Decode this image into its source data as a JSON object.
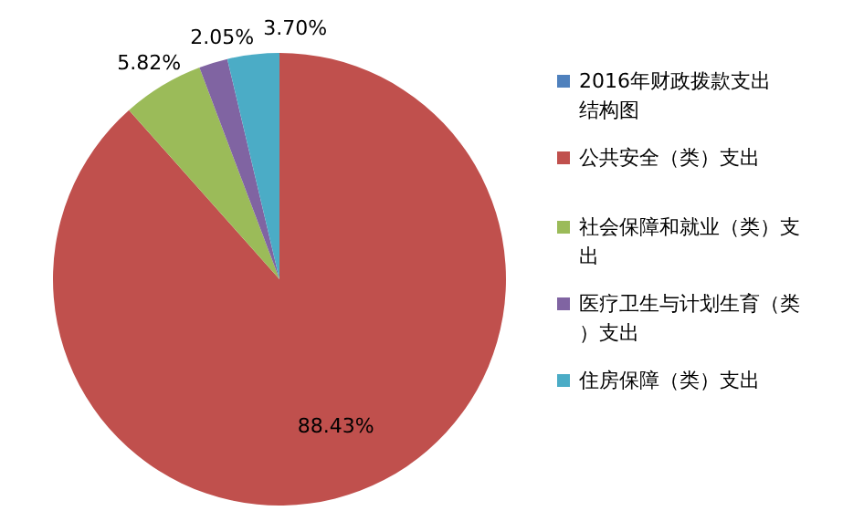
{
  "chart_data": {
    "type": "pie",
    "categories": [
      "2016年财政拨款支出结构图",
      "公共安全（类）支出",
      "社会保障和就业（类）支出",
      "医疗卫生与计划生育（类）支出",
      "住房保障（类）支出"
    ],
    "values": [
      0,
      88.43,
      5.82,
      2.05,
      3.7
    ],
    "colors": [
      "#4f81bd",
      "#c0504d",
      "#9bbb59",
      "#8064a2",
      "#4bacc6"
    ],
    "value_labels": [
      null,
      "88.43%",
      "5.82%",
      "2.05%",
      "3.70%"
    ],
    "legend": "right"
  }
}
